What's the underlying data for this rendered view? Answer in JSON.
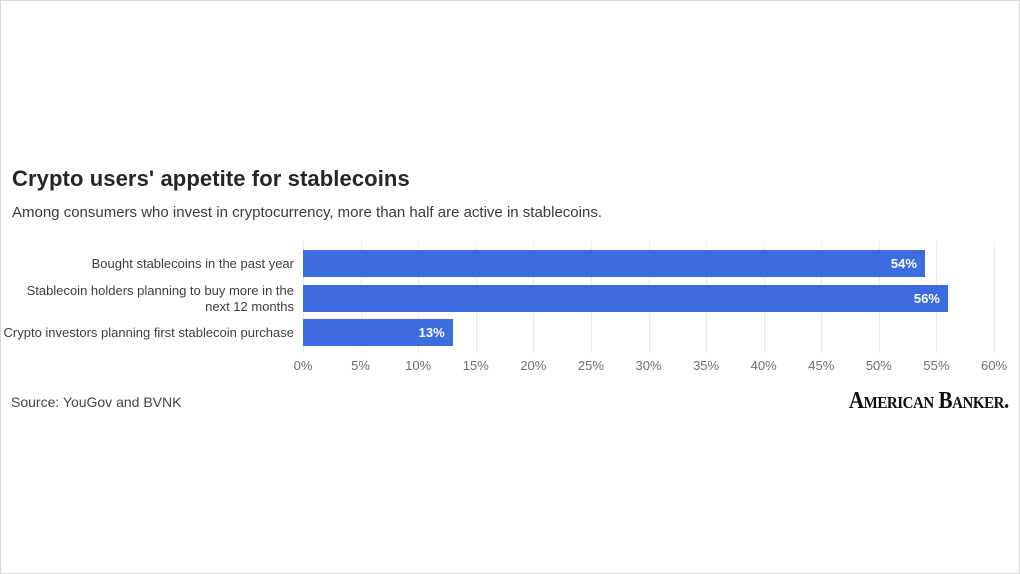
{
  "title": "Crypto users' appetite for stablecoins",
  "subtitle": "Among consumers who invest in cryptocurrency, more than half are active in stablecoins.",
  "source": "Source: YouGov and BVNK",
  "logo_text": "American Banker.",
  "colors": {
    "bar": "#3d6ce0",
    "value_label": "#ffffff",
    "gridline": "#e9e9e9",
    "tick_label": "#6f6f6f",
    "title": "#262626",
    "card_border": "#d7d7d7"
  },
  "chart_data": {
    "type": "bar",
    "orientation": "horizontal",
    "title": "Crypto users' appetite for stablecoins",
    "subtitle": "Among consumers who invest in cryptocurrency, more than half are active in stablecoins.",
    "categories": [
      "Bought stablecoins in the past year",
      "Stablecoin holders planning to buy more in the next 12 months",
      "Crypto investors planning first stablecoin purchase"
    ],
    "values": [
      54,
      56,
      13
    ],
    "value_labels": [
      "54%",
      "56%",
      "13%"
    ],
    "xlabel": "",
    "ylabel": "",
    "xlim": [
      0,
      60
    ],
    "x_ticks": [
      "0%",
      "5%",
      "10%",
      "15%",
      "20%",
      "25%",
      "30%",
      "35%",
      "40%",
      "45%",
      "50%",
      "55%",
      "60%"
    ],
    "grid": true,
    "legend": "none"
  }
}
